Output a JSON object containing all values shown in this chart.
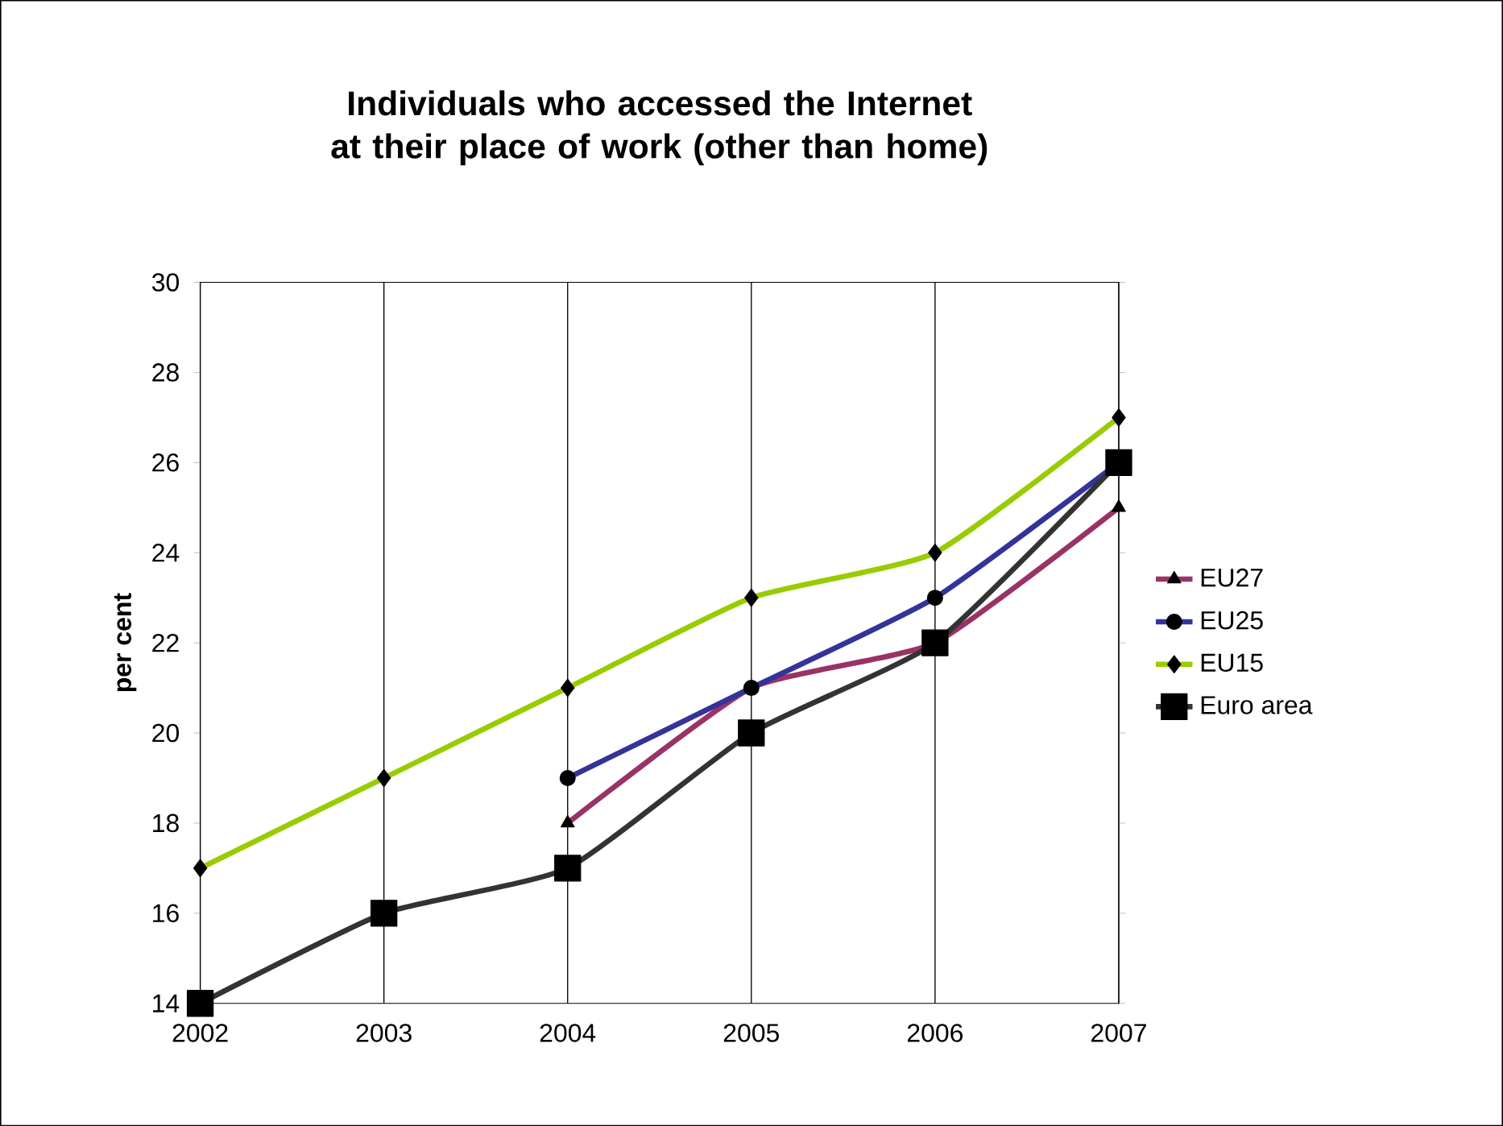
{
  "chart_data": {
    "type": "line",
    "title": "Individuals who accessed the Internet at their place of work (other than home)",
    "ylabel": "per cent",
    "x": [
      2002,
      2003,
      2004,
      2005,
      2006,
      2007
    ],
    "xlim": [
      2002,
      2007
    ],
    "xticks": [
      2002,
      2003,
      2004,
      2005,
      2006,
      2007
    ],
    "ylim": [
      14,
      30
    ],
    "yticks": [
      14,
      16,
      18,
      20,
      22,
      24,
      26,
      28,
      30
    ],
    "grid": "x",
    "legend": "right",
    "line_style": "solid",
    "series": [
      {
        "name": "EU27",
        "color": "#993366",
        "marker": "triangle",
        "values": [
          null,
          null,
          18,
          21,
          22,
          25
        ]
      },
      {
        "name": "EU25",
        "color": "#333399",
        "marker": "circle",
        "values": [
          null,
          null,
          19,
          21,
          23,
          26
        ]
      },
      {
        "name": "EU15",
        "color": "#99cc00",
        "marker": "diamond",
        "values": [
          17,
          19,
          21,
          23,
          24,
          27
        ]
      },
      {
        "name": "Euro area",
        "color": "#333333",
        "marker": "square",
        "values": [
          14,
          16,
          17,
          20,
          22,
          26
        ]
      }
    ]
  }
}
